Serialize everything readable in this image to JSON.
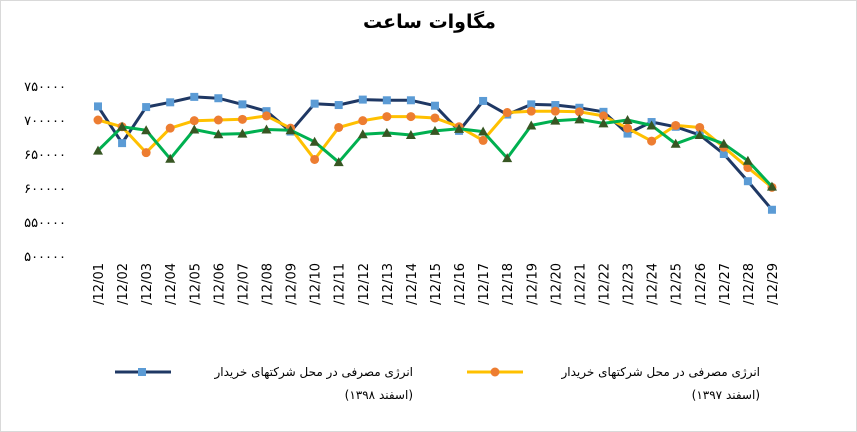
{
  "chart_data": {
    "type": "line",
    "title": "مگاوات ساعت",
    "categories": [
      "/12/01",
      "/12/02",
      "/12/03",
      "/12/04",
      "/12/05",
      "/12/06",
      "/12/07",
      "/12/08",
      "/12/09",
      "/12/10",
      "/12/11",
      "/12/12",
      "/12/13",
      "/12/14",
      "/12/15",
      "/12/16",
      "/12/17",
      "/12/18",
      "/12/19",
      "/12/20",
      "/12/21",
      "/12/22",
      "/12/23",
      "/12/24",
      "/12/25",
      "/12/26",
      "/12/27",
      "/12/28",
      "/12/29"
    ],
    "y_tick_labels": [
      "۵۰۰۰۰۰",
      "۵۵۰۰۰۰",
      "۶۰۰۰۰۰",
      "۶۵۰۰۰۰",
      "۷۰۰۰۰۰",
      "۷۵۰۰۰۰"
    ],
    "ylim": [
      500000,
      750000
    ],
    "series": [
      {
        "name": "انرژی مصرفی در محل شرکتهای خریدار",
        "period": "(اسفند ۱۳۹۸)",
        "color": "#1f3864",
        "marker_color": "#5b9bd5",
        "marker": "square",
        "values": [
          720000,
          666000,
          719000,
          726000,
          734000,
          732000,
          723000,
          713000,
          683000,
          724000,
          722000,
          730000,
          729000,
          729000,
          721000,
          684000,
          728000,
          708000,
          723000,
          722000,
          718000,
          712000,
          680000,
          697000,
          690000,
          678000,
          650000,
          610000,
          568000
        ]
      },
      {
        "name": "انرژی مصرفی در محل شرکتهای خریدار",
        "period": "(اسفند ۱۳۹۷)",
        "color": "#ffc000",
        "marker_color": "#ed7d31",
        "marker": "circle",
        "values": [
          700000,
          690000,
          652000,
          688000,
          699000,
          700000,
          701000,
          706000,
          688000,
          642000,
          689000,
          699000,
          705000,
          705000,
          703000,
          690000,
          670000,
          711000,
          713000,
          713000,
          712000,
          706000,
          688000,
          669000,
          692000,
          689000,
          660000,
          630000,
          601000
        ]
      },
      {
        "name": "",
        "color": "#00b050",
        "marker_color": "#375623",
        "marker": "triangle",
        "values": [
          655000,
          690000,
          685000,
          643000,
          686000,
          679000,
          680000,
          686000,
          685000,
          668000,
          638000,
          679000,
          681000,
          678000,
          684000,
          687000,
          683000,
          644000,
          692000,
          699000,
          701000,
          695000,
          700000,
          692000,
          665000,
          678000,
          665000,
          640000,
          602000
        ]
      }
    ]
  }
}
